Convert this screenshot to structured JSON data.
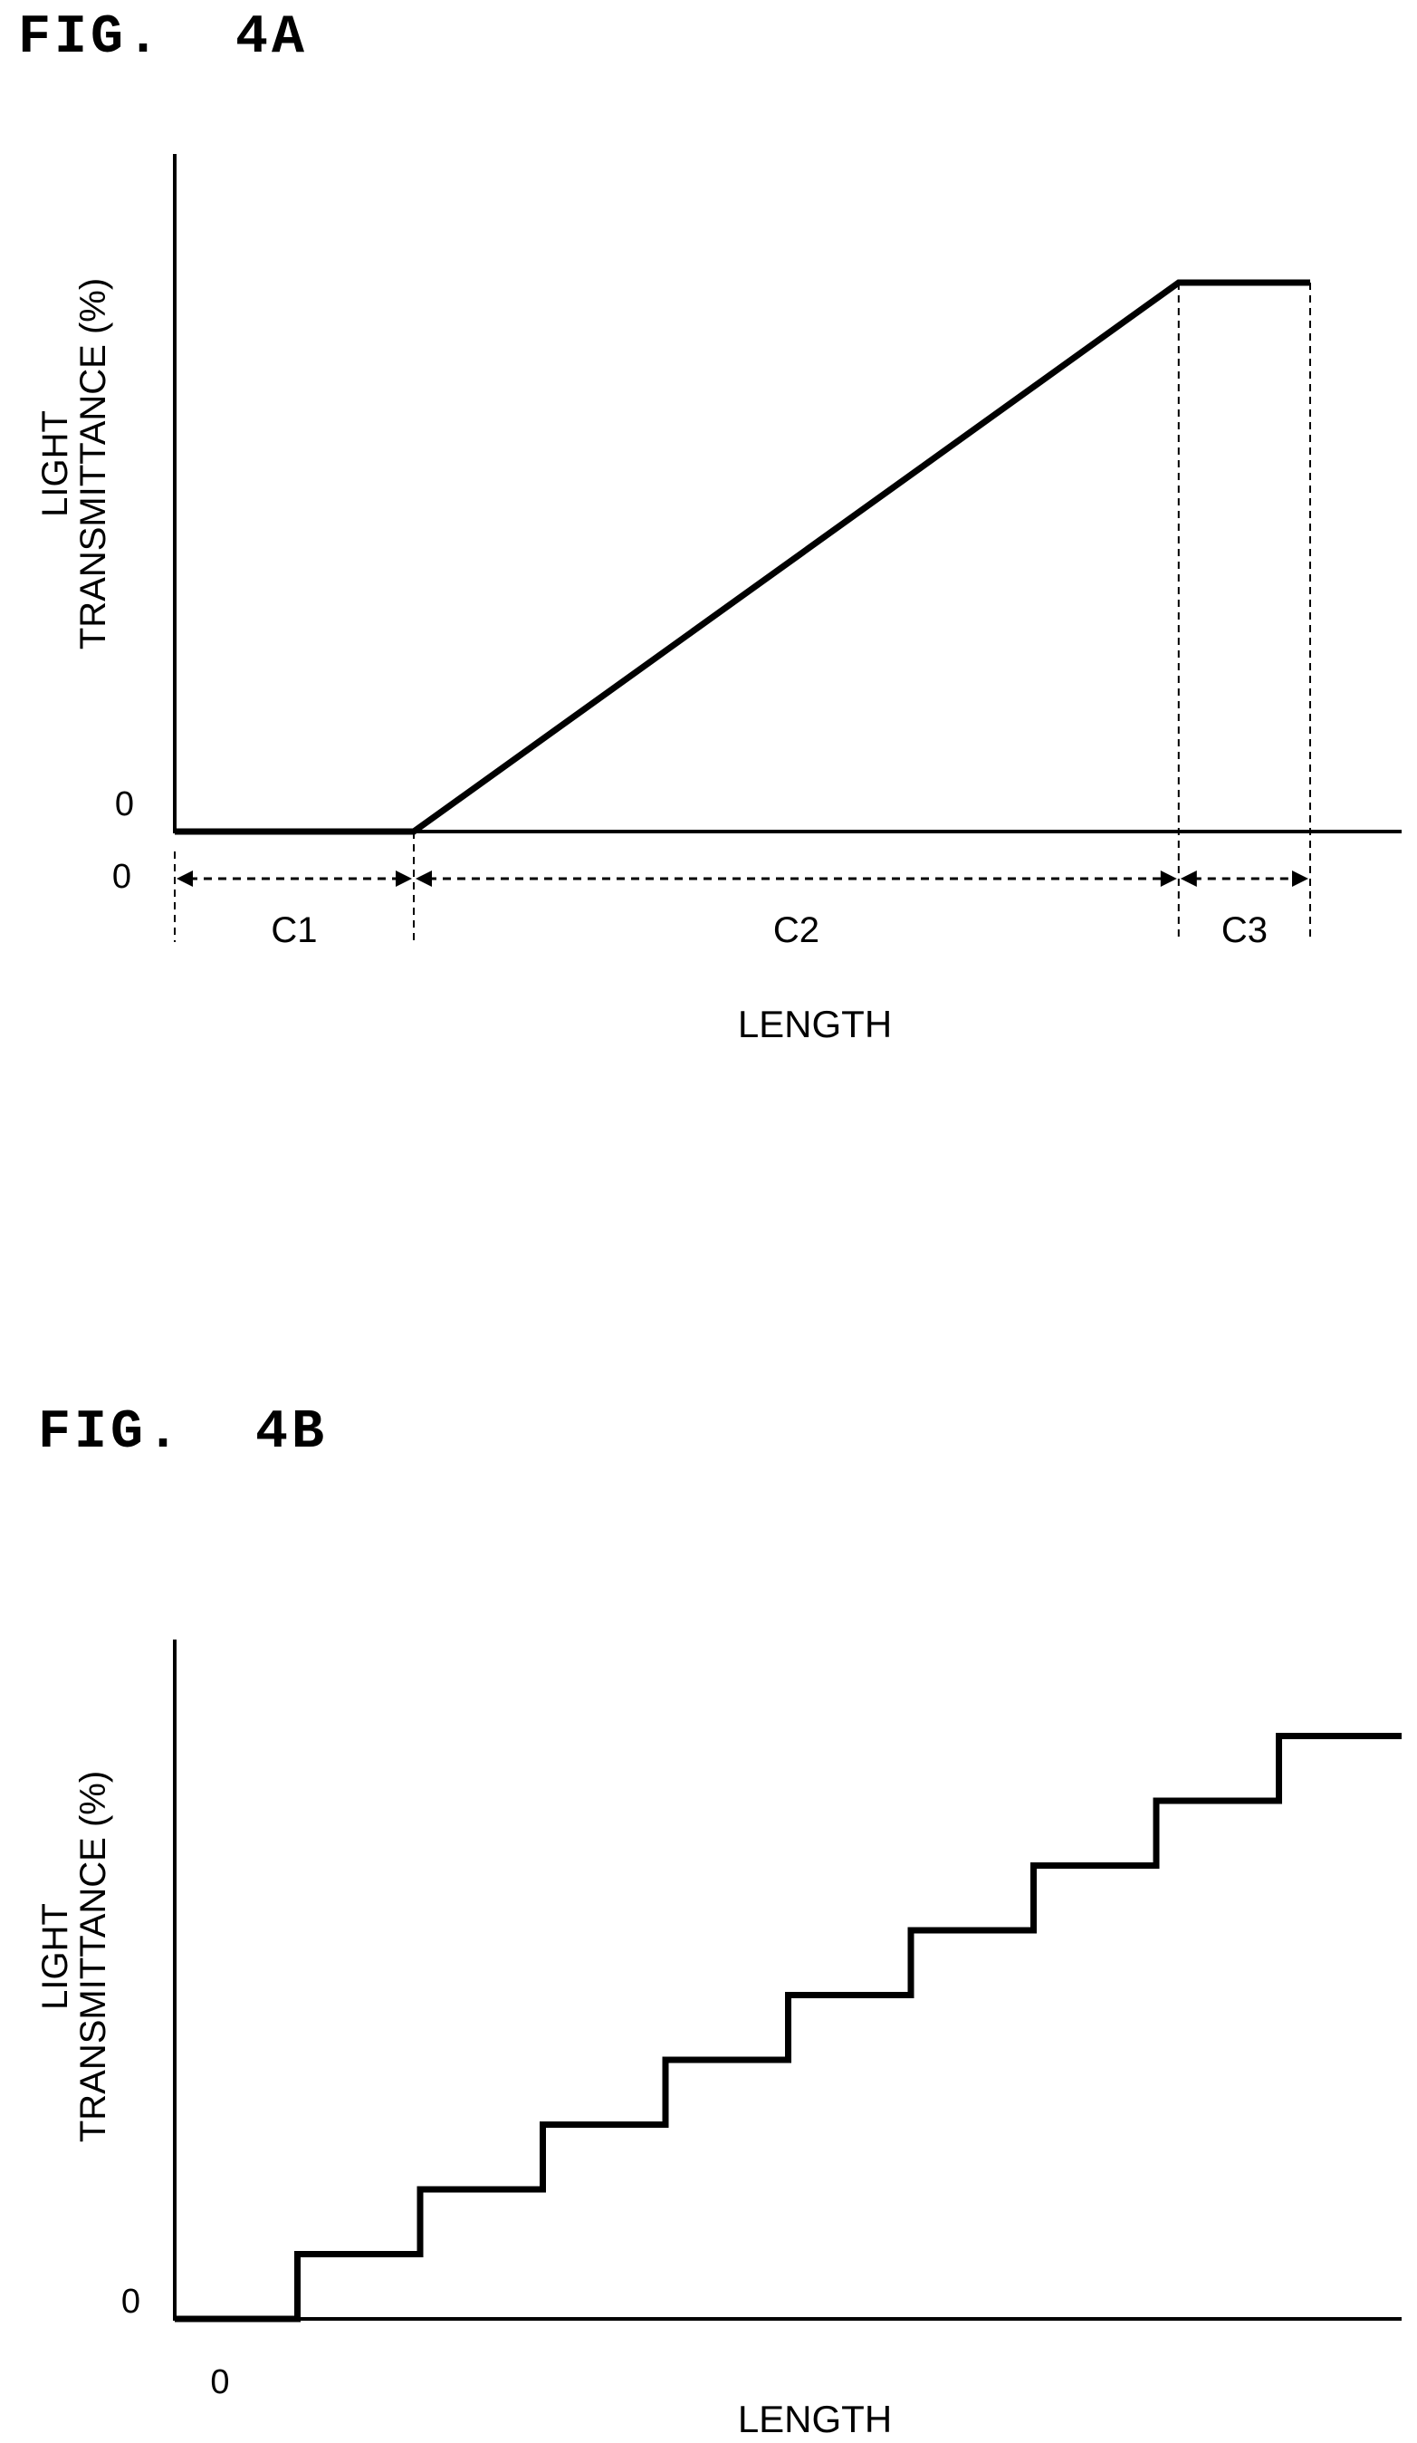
{
  "figures": [
    {
      "label": "FIG.  4A"
    },
    {
      "label": "FIG.  4B"
    }
  ],
  "chart_data": [
    {
      "type": "line",
      "title": "FIG.  4A",
      "xlabel": "LENGTH",
      "ylabel_lines": [
        "LIGHT",
        "TRANSMITTANCE (%)"
      ],
      "x_origin_label": "0",
      "y_origin_label": "0",
      "x": [
        0,
        1,
        4.2,
        4.75
      ],
      "y": [
        0,
        0,
        1,
        1
      ],
      "xlim": [
        0,
        5.1
      ],
      "ylim": [
        0,
        1.28
      ],
      "regions": [
        {
          "label": "C1",
          "start": 0,
          "end": 1
        },
        {
          "label": "C2",
          "start": 1,
          "end": 4.2
        },
        {
          "label": "C3",
          "start": 4.2,
          "end": 4.75
        }
      ],
      "grid": false
    },
    {
      "type": "line",
      "title": "FIG.  4B",
      "xlabel": "LENGTH",
      "ylabel_lines": [
        "LIGHT",
        "TRANSMITTANCE (%)"
      ],
      "x_origin_label": "0",
      "y_origin_label": "0",
      "step": true,
      "x": [
        0,
        1,
        2,
        3,
        4,
        5,
        6,
        7,
        8,
        9,
        10
      ],
      "y": [
        0,
        1,
        2,
        3,
        4,
        5,
        6,
        7,
        8,
        9,
        9
      ],
      "xlim": [
        0,
        10
      ],
      "ylim": [
        0,
        10.5
      ],
      "grid": false
    }
  ]
}
